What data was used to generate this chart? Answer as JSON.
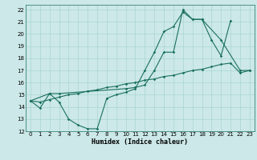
{
  "xlabel": "Humidex (Indice chaleur)",
  "bg_color": "#cce8e8",
  "grid_color": "#aad4d4",
  "line_color": "#1a7060",
  "xlim": [
    -0.5,
    23.5
  ],
  "ylim": [
    12,
    22.4
  ],
  "xticks": [
    0,
    1,
    2,
    3,
    4,
    5,
    6,
    7,
    8,
    9,
    10,
    11,
    12,
    13,
    14,
    15,
    16,
    17,
    18,
    19,
    20,
    21,
    22,
    23
  ],
  "yticks": [
    12,
    13,
    14,
    15,
    16,
    17,
    18,
    19,
    20,
    21,
    22
  ],
  "curve1_x": [
    0,
    1,
    2,
    3,
    4,
    5,
    6,
    7,
    8,
    9,
    10,
    11,
    12,
    13,
    14,
    15,
    16,
    17,
    18,
    19,
    20,
    21
  ],
  "curve1_y": [
    14.5,
    13.9,
    15.1,
    14.4,
    13.0,
    12.5,
    12.2,
    12.2,
    14.7,
    15.0,
    15.2,
    15.5,
    17.0,
    18.5,
    20.2,
    20.6,
    21.8,
    21.2,
    21.2,
    19.5,
    18.2,
    21.1
  ],
  "curve2_x": [
    0,
    2,
    3,
    10,
    11,
    12,
    13,
    14,
    15,
    16,
    17,
    18,
    20,
    22,
    23
  ],
  "curve2_y": [
    14.5,
    15.1,
    15.1,
    15.5,
    15.6,
    15.8,
    17.0,
    18.5,
    18.5,
    22.0,
    21.2,
    21.2,
    19.5,
    17.0,
    17.0
  ],
  "curve3_x": [
    0,
    1,
    2,
    3,
    4,
    5,
    6,
    7,
    8,
    9,
    10,
    11,
    12,
    13,
    14,
    15,
    16,
    17,
    18,
    19,
    20,
    21,
    22,
    23
  ],
  "curve3_y": [
    14.5,
    14.4,
    14.6,
    14.8,
    15.0,
    15.1,
    15.3,
    15.4,
    15.6,
    15.7,
    15.9,
    16.0,
    16.2,
    16.3,
    16.5,
    16.6,
    16.8,
    17.0,
    17.1,
    17.3,
    17.5,
    17.6,
    16.8,
    17.0
  ],
  "fontsize_label": 6,
  "fontsize_tick": 5,
  "markersize": 1.8,
  "linewidth": 0.8
}
